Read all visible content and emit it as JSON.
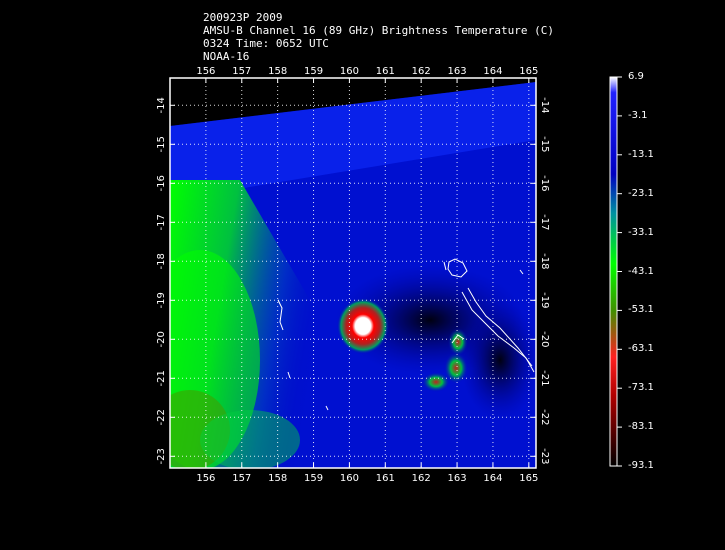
{
  "header": {
    "line1": "200923P 2009",
    "line2": "AMSU-B Channel 16 (89 GHz) Brightness Temperature (C)",
    "line3": "0324 Time: 0652 UTC",
    "line4": "NOAA-16"
  },
  "map": {
    "lon_ticks": [
      "156",
      "157",
      "158",
      "159",
      "160",
      "161",
      "162",
      "163",
      "164",
      "165"
    ],
    "lat_ticks": [
      "-14",
      "-15",
      "-16",
      "-17",
      "-18",
      "-19",
      "-20",
      "-21",
      "-22",
      "-23"
    ],
    "lon_range": [
      155.0,
      165.2
    ],
    "lat_range": [
      -13.3,
      -23.3
    ]
  },
  "colorbar": {
    "labels": [
      "6.9",
      "-3.1",
      "-13.1",
      "-23.1",
      "-33.1",
      "-43.1",
      "-53.1",
      "-63.1",
      "-73.1",
      "-83.1",
      "-93.1"
    ],
    "colors": [
      "#ffffff",
      "#1a1aff",
      "#0000cc",
      "#0080a0",
      "#00c040",
      "#00ff00",
      "#40a000",
      "#c02020",
      "#ff0000",
      "#800000",
      "#000000"
    ]
  }
}
